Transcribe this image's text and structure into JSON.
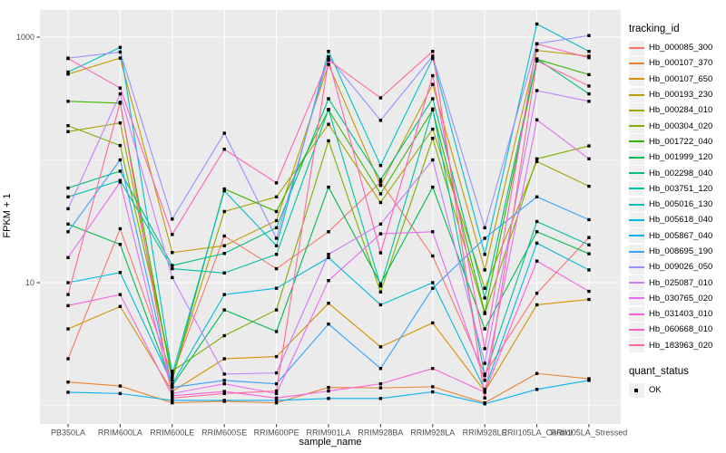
{
  "figure": {
    "background": "#ffffff"
  },
  "chart_data": {
    "type": "line",
    "title": "",
    "xlabel": "sample_name",
    "ylabel": "FPKM + 1",
    "x_type": "categorical",
    "y_scale": "log10",
    "ylim": [
      0.72,
      1600
    ],
    "y_tick_values": [
      1000,
      10
    ],
    "y_tick_labels": [
      "1000",
      "10"
    ],
    "y_minor_gridlines": [
      100,
      1
    ],
    "grid": "on",
    "panel_bg": "#EBEBEB",
    "gridline_color": "#FFFFFF",
    "tick_color": "#333333",
    "tick_label_color": "#4D4D4D",
    "point_color": "#000000",
    "legend_position": "right",
    "legend_title": "tracking_id",
    "legend2_title": "quant_status",
    "legend2_items": [
      {
        "label": "OK",
        "marker": "black-square",
        "marker_color": "#000000"
      }
    ],
    "categories": [
      "PB350LA",
      "RRIM600LA",
      "RRIM600LE",
      "RRIM600SE",
      "RRIM600PE",
      "RRIM901LA",
      "RRIM928BA",
      "RRIM928LA",
      "RRIM928LE",
      "RRII105LA_Control",
      "RRII105LA_Stressed"
    ],
    "series": [
      {
        "name": "Hb_000085_300",
        "color": "#F8766D",
        "values": [
          2.4,
          27.5,
          1.75,
          24,
          13,
          26,
          66,
          16.5,
          1.8,
          8.2,
          23.3
        ]
      },
      {
        "name": "Hb_000107_370",
        "color": "#EA8331",
        "values": [
          1.55,
          1.44,
          1.05,
          1.08,
          1.05,
          1.4,
          1.39,
          1.42,
          1.05,
          1.82,
          1.65
        ]
      },
      {
        "name": "Hb_000107_650",
        "color": "#D89000",
        "values": [
          4.2,
          6.4,
          1.3,
          2.4,
          2.5,
          6.8,
          3.0,
          4.7,
          1.3,
          6.6,
          7.3
        ]
      },
      {
        "name": "Hb_000193_230",
        "color": "#C09B00",
        "values": [
          500,
          675,
          17.6,
          20,
          32,
          600,
          62,
          412,
          12.7,
          780,
          700
        ]
      },
      {
        "name": "Hb_000284_010",
        "color": "#A3A500",
        "values": [
          170,
          200,
          1.7,
          38,
          50,
          195,
          45,
          178,
          9.0,
          97,
          61
        ]
      },
      {
        "name": "Hb_000304_020",
        "color": "#7CAE00",
        "values": [
          190,
          131,
          1.9,
          3.7,
          6.0,
          143,
          8.4,
          150,
          5.6,
          102,
          130
        ]
      },
      {
        "name": "Hb_001722_040",
        "color": "#39B600",
        "values": [
          300,
          290,
          1.6,
          58,
          38,
          255,
          53,
          255,
          5.7,
          660,
          495
        ]
      },
      {
        "name": "Hb_001999_120",
        "color": "#00BB4E",
        "values": [
          30,
          20.5,
          1.45,
          6.0,
          4.0,
          60,
          9.8,
          60,
          4.2,
          26,
          17.2
        ]
      },
      {
        "name": "Hb_002298_040",
        "color": "#00BF7D",
        "values": [
          59,
          81,
          13.8,
          17.3,
          28,
          315,
          69,
          315,
          7.5,
          665,
          345
        ]
      },
      {
        "name": "Hb_003751_120",
        "color": "#00C1A3",
        "values": [
          50,
          68,
          13,
          12,
          17,
          258,
          9.4,
          260,
          1.75,
          31.5,
          20.3
        ]
      },
      {
        "name": "Hb_005016_130",
        "color": "#00BFC4",
        "values": [
          520,
          825,
          1.8,
          56,
          20,
          766,
          90,
          670,
          17,
          1280,
          766
        ]
      },
      {
        "name": "Hb_005618_040",
        "color": "#00BAE0",
        "values": [
          10,
          12.1,
          1.5,
          8.0,
          9.0,
          16,
          6.6,
          10,
          1.35,
          21,
          12.7
        ]
      },
      {
        "name": "Hb_005867_040",
        "color": "#00B0F6",
        "values": [
          1.28,
          1.25,
          1.1,
          1.1,
          1.1,
          1.14,
          1.14,
          1.29,
          1.03,
          1.35,
          1.6
        ]
      },
      {
        "name": "Hb_008695_190",
        "color": "#35A2FF",
        "values": [
          26,
          100,
          1.4,
          1.6,
          1.5,
          4.6,
          2.0,
          9.0,
          23,
          50,
          32.6
        ]
      },
      {
        "name": "Hb_009026_050",
        "color": "#9590FF",
        "values": [
          675,
          757,
          33,
          165,
          23,
          690,
          210,
          700,
          28,
          884,
          1030
        ]
      },
      {
        "name": "Hb_025087_010",
        "color": "#C77CFF",
        "values": [
          40,
          345,
          11,
          1.8,
          1.84,
          17,
          30,
          100,
          2.2,
          367,
          300
        ]
      },
      {
        "name": "Hb_030765_020",
        "color": "#E76BF3",
        "values": [
          16,
          66,
          1.25,
          1.5,
          1.25,
          10.4,
          25,
          26,
          1.6,
          212,
          102
        ]
      },
      {
        "name": "Hb_031403_010",
        "color": "#FA62DB",
        "values": [
          6.5,
          8.0,
          1.2,
          1.3,
          1.15,
          1.31,
          1.5,
          2.0,
          1.28,
          15,
          8.5
        ]
      },
      {
        "name": "Hb_060668_010",
        "color": "#FF62BC",
        "values": [
          670,
          385,
          24.7,
          122,
          65,
          655,
          17.5,
          485,
          2.9,
          880,
          680
        ]
      },
      {
        "name": "Hb_183963_020",
        "color": "#FF6A98",
        "values": [
          8.0,
          295,
          1.15,
          1.25,
          1.31,
          650,
          320,
          766,
          1.15,
          640,
          400
        ]
      }
    ]
  }
}
